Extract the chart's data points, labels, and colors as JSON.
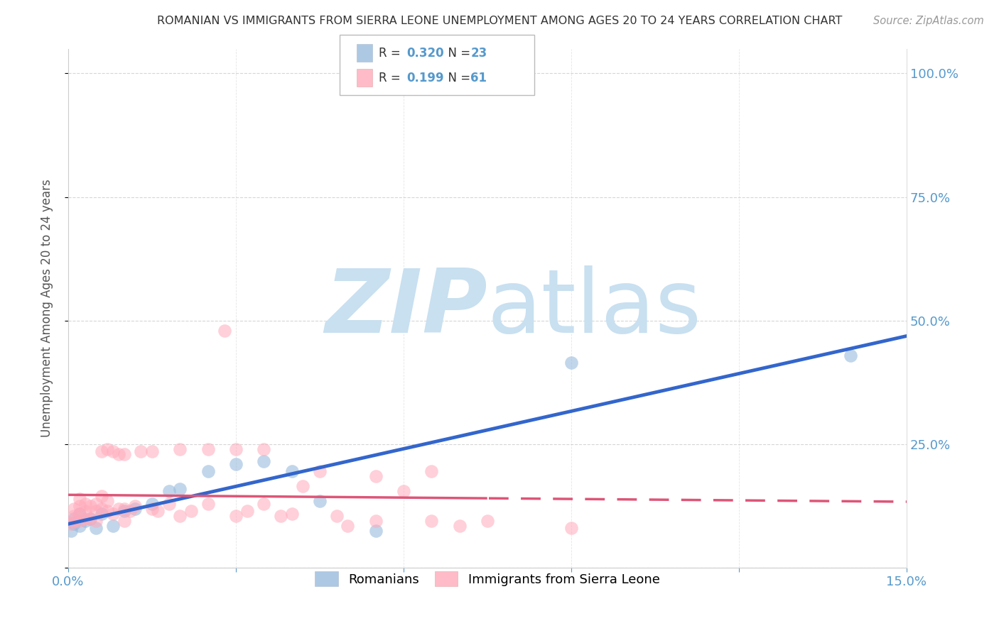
{
  "title": "ROMANIAN VS IMMIGRANTS FROM SIERRA LEONE UNEMPLOYMENT AMONG AGES 20 TO 24 YEARS CORRELATION CHART",
  "source": "Source: ZipAtlas.com",
  "ylabel": "Unemployment Among Ages 20 to 24 years",
  "xlim": [
    0.0,
    0.15
  ],
  "ylim": [
    0.0,
    1.05
  ],
  "title_color": "#333333",
  "source_color": "#999999",
  "grid_color": "#cccccc",
  "watermark_zip": "ZIP",
  "watermark_atlas": "atlas",
  "watermark_color": "#c8e0f0",
  "legend_R1": "0.320",
  "legend_N1": "23",
  "legend_R2": "0.199",
  "legend_N2": "61",
  "blue_scatter_color": "#99bbdd",
  "pink_scatter_color": "#ffaabb",
  "blue_line_color": "#3366cc",
  "pink_line_color": "#dd5577",
  "tick_color": "#5599cc",
  "romanians_x": [
    0.0005,
    0.001,
    0.001,
    0.002,
    0.002,
    0.003,
    0.004,
    0.005,
    0.006,
    0.008,
    0.01,
    0.012,
    0.015,
    0.018,
    0.02,
    0.025,
    0.03,
    0.035,
    0.04,
    0.045,
    0.055,
    0.09,
    0.14
  ],
  "romanians_y": [
    0.075,
    0.09,
    0.1,
    0.085,
    0.11,
    0.095,
    0.1,
    0.08,
    0.11,
    0.085,
    0.115,
    0.12,
    0.13,
    0.155,
    0.16,
    0.195,
    0.21,
    0.215,
    0.195,
    0.135,
    0.075,
    0.415,
    0.43
  ],
  "sierraleonians_x": [
    0.0005,
    0.001,
    0.001,
    0.001,
    0.002,
    0.002,
    0.002,
    0.002,
    0.003,
    0.003,
    0.003,
    0.004,
    0.004,
    0.005,
    0.005,
    0.005,
    0.006,
    0.006,
    0.006,
    0.007,
    0.007,
    0.007,
    0.008,
    0.008,
    0.009,
    0.009,
    0.01,
    0.01,
    0.01,
    0.011,
    0.012,
    0.013,
    0.015,
    0.015,
    0.016,
    0.018,
    0.02,
    0.02,
    0.022,
    0.025,
    0.025,
    0.028,
    0.03,
    0.03,
    0.032,
    0.035,
    0.035,
    0.038,
    0.04,
    0.042,
    0.045,
    0.048,
    0.05,
    0.055,
    0.055,
    0.06,
    0.065,
    0.065,
    0.07,
    0.075,
    0.09
  ],
  "sierraleonians_y": [
    0.09,
    0.095,
    0.105,
    0.12,
    0.095,
    0.11,
    0.125,
    0.14,
    0.1,
    0.115,
    0.13,
    0.1,
    0.125,
    0.095,
    0.115,
    0.13,
    0.12,
    0.145,
    0.235,
    0.115,
    0.135,
    0.24,
    0.11,
    0.235,
    0.12,
    0.23,
    0.095,
    0.12,
    0.23,
    0.115,
    0.125,
    0.235,
    0.12,
    0.235,
    0.115,
    0.13,
    0.105,
    0.24,
    0.115,
    0.13,
    0.24,
    0.48,
    0.105,
    0.24,
    0.115,
    0.13,
    0.24,
    0.105,
    0.11,
    0.165,
    0.195,
    0.105,
    0.085,
    0.095,
    0.185,
    0.155,
    0.095,
    0.195,
    0.085,
    0.095,
    0.08
  ]
}
